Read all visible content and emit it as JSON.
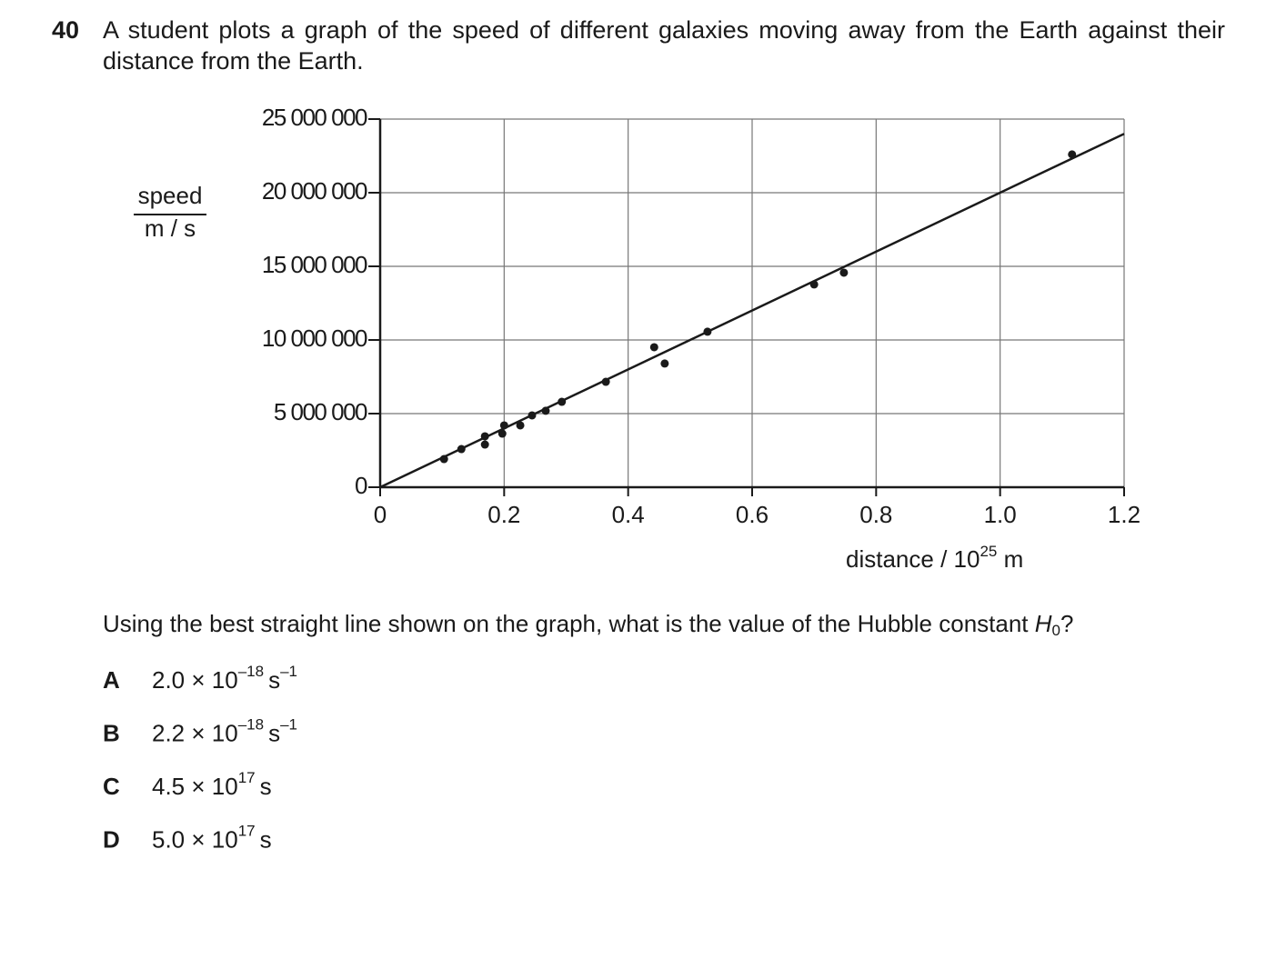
{
  "question": {
    "number": "40",
    "text": "A student plots a graph of the speed of different galaxies moving away from the Earth against their distance from the Earth.",
    "prompt": "Using the best straight line shown on the graph, what is the value of the Hubble constant ",
    "symbol": "H",
    "subscript": "0",
    "end": "?"
  },
  "chart_data": {
    "type": "scatter",
    "y_label": {
      "quantity": "speed",
      "unit": "m / s"
    },
    "x_label": {
      "text": "distance / 10",
      "exponent": "25",
      "unit": " m"
    },
    "points": {
      "x": [
        0.103,
        0.131,
        0.169,
        0.169,
        0.197,
        0.2,
        0.226,
        0.245,
        0.267,
        0.293,
        0.364,
        0.442,
        0.459,
        0.528,
        0.7,
        0.748,
        1.116
      ],
      "y": [
        1910000,
        2590000,
        3460000,
        2900000,
        3640000,
        4200000,
        4200000,
        4880000,
        5190000,
        5800000,
        7160000,
        9510000,
        8400000,
        10560000,
        13770000,
        14570000,
        22600000
      ]
    },
    "fit_line": {
      "x": [
        0,
        1.2
      ],
      "y": [
        0,
        24000000
      ]
    },
    "color": "#1a1a1a",
    "xlim": [
      0,
      1.2
    ],
    "ylim": [
      0,
      25000000
    ],
    "xticks": [
      0,
      0.2,
      0.4,
      0.6,
      0.8,
      {
        "value": 1,
        "label": "1.0"
      },
      1.2
    ],
    "yticks": [
      0,
      {
        "value": 5000000,
        "label": "5 000 000"
      },
      {
        "value": 10000000,
        "label": "10 000 000"
      },
      {
        "value": 15000000,
        "label": "15 000 000"
      },
      {
        "value": 20000000,
        "label": "20 000 000"
      },
      {
        "value": 25000000,
        "label": "25 000 000"
      }
    ],
    "grid": true
  },
  "options": [
    {
      "letter": "A",
      "base": "2.0 × 10",
      "exponent": "–18",
      "unit": "s",
      "unit_exponent": "–1"
    },
    {
      "letter": "B",
      "base": "2.2 × 10",
      "exponent": "–18",
      "unit": "s",
      "unit_exponent": "–1"
    },
    {
      "letter": "C",
      "base": "4.5 × 10",
      "exponent": "17",
      "unit": "s"
    },
    {
      "letter": "D",
      "base": "5.0 × 10",
      "exponent": "17",
      "unit": "s"
    }
  ]
}
